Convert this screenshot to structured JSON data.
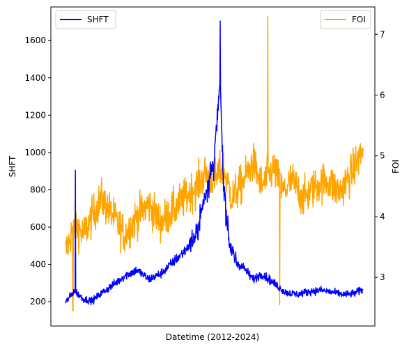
{
  "chart_data": {
    "type": "line",
    "title": "",
    "xlabel": "Datetime (2012-2024)",
    "x_range": [
      0,
      1
    ],
    "y_left": {
      "label": "SHFT",
      "ylim": [
        70,
        1780
      ],
      "ticks": [
        200,
        400,
        600,
        800,
        1000,
        1200,
        1400,
        1600
      ],
      "tick_labels": [
        "200",
        "400",
        "600",
        "800",
        "1000",
        "1200",
        "1400",
        "1600"
      ]
    },
    "y_right": {
      "label": "FOI",
      "ylim": [
        2.2,
        7.45
      ],
      "ticks": [
        3,
        4,
        5,
        6,
        7
      ],
      "tick_labels": [
        "3",
        "4",
        "5",
        "6",
        "7"
      ]
    },
    "series": [
      {
        "name": "SHFT",
        "axis": "left",
        "color": "#0000ff",
        "x": [
          0.0,
          0.03,
          0.06,
          0.09,
          0.12,
          0.16,
          0.2,
          0.24,
          0.28,
          0.32,
          0.36,
          0.4,
          0.44,
          0.47,
          0.5,
          0.52,
          0.53,
          0.55,
          0.57,
          0.6,
          0.63,
          0.66,
          0.7,
          0.74,
          0.78,
          0.82,
          0.86,
          0.9,
          0.94,
          0.97,
          1.0
        ],
        "values": [
          195,
          260,
          215,
          205,
          245,
          290,
          340,
          370,
          320,
          350,
          410,
          470,
          560,
          780,
          960,
          1380,
          860,
          520,
          420,
          380,
          320,
          350,
          300,
          250,
          240,
          255,
          262,
          250,
          238,
          245,
          265
        ],
        "peaks": [
          {
            "x": 0.033,
            "value": 905
          },
          {
            "x": 0.52,
            "value": 1705
          }
        ]
      },
      {
        "name": "FOI",
        "axis": "right",
        "color": "#ffa500",
        "x": [
          0.0,
          0.03,
          0.06,
          0.09,
          0.12,
          0.16,
          0.2,
          0.24,
          0.28,
          0.32,
          0.36,
          0.4,
          0.44,
          0.47,
          0.5,
          0.53,
          0.56,
          0.6,
          0.63,
          0.66,
          0.7,
          0.73,
          0.76,
          0.8,
          0.84,
          0.88,
          0.92,
          0.96,
          1.0
        ],
        "values": [
          3.4,
          3.9,
          3.7,
          4.0,
          4.3,
          4.0,
          3.7,
          4.0,
          4.2,
          3.9,
          4.1,
          4.3,
          4.5,
          4.7,
          4.6,
          4.8,
          4.3,
          4.6,
          4.9,
          4.5,
          4.8,
          4.4,
          4.6,
          4.3,
          4.5,
          4.6,
          4.4,
          4.7,
          5.1
        ],
        "peaks": [
          {
            "x": 0.025,
            "value": 2.45
          },
          {
            "x": 0.68,
            "value": 7.3
          },
          {
            "x": 0.72,
            "value": 2.55
          }
        ]
      }
    ],
    "legends": [
      {
        "label": "SHFT",
        "color": "#0000ff",
        "position": "upper-left"
      },
      {
        "label": "FOI",
        "color": "#ffa500",
        "position": "upper-right"
      }
    ],
    "grid": false
  }
}
